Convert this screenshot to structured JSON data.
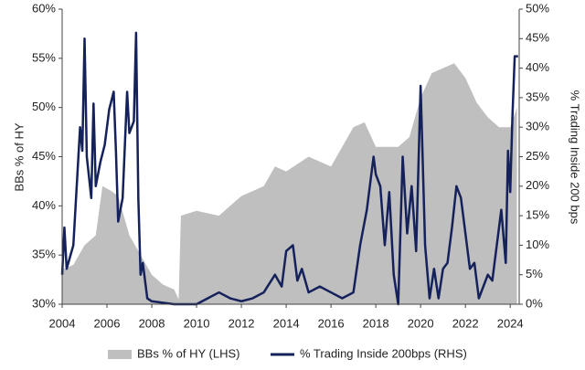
{
  "chart_data": {
    "type": "area_line",
    "ylabel": "BBs % of HY",
    "y2label": "% Trading Inside 200 bps",
    "xlim": [
      2004,
      2024.4
    ],
    "xticks": [
      2004,
      2006,
      2008,
      2010,
      2012,
      2014,
      2016,
      2018,
      2020,
      2022,
      2024
    ],
    "ylim": [
      30,
      60
    ],
    "yticks": [
      {
        "value": 30,
        "label": "30%"
      },
      {
        "value": 35,
        "label": "35%"
      },
      {
        "value": 40,
        "label": "40%"
      },
      {
        "value": 45,
        "label": "45%"
      },
      {
        "value": 50,
        "label": "50%"
      },
      {
        "value": 55,
        "label": "55%"
      },
      {
        "value": 60,
        "label": "60%"
      }
    ],
    "y2lim": [
      0,
      50
    ],
    "y2ticks": [
      {
        "value": 0,
        "label": "0%"
      },
      {
        "value": 5,
        "label": "5%"
      },
      {
        "value": 10,
        "label": "10%"
      },
      {
        "value": 15,
        "label": "15%"
      },
      {
        "value": 20,
        "label": "20%"
      },
      {
        "value": 25,
        "label": "25%"
      },
      {
        "value": 30,
        "label": "30%"
      },
      {
        "value": 35,
        "label": "35%"
      },
      {
        "value": 40,
        "label": "40%"
      },
      {
        "value": 45,
        "label": "45%"
      },
      {
        "value": 50,
        "label": "50%"
      }
    ],
    "series": [
      {
        "name": "BBs % of HY (LHS)",
        "color": "#bfbfbf",
        "kind": "area",
        "x": [
          2004,
          2004.5,
          2005,
          2005.5,
          2005.8,
          2006.2,
          2006.5,
          2007,
          2007.5,
          2008,
          2008.5,
          2009,
          2009.2,
          2009.3,
          2010,
          2011,
          2012,
          2013,
          2013.5,
          2014,
          2015,
          2016,
          2016.5,
          2017,
          2017.5,
          2018,
          2019,
          2019.5,
          2020,
          2020.5,
          2021,
          2021.5,
          2022,
          2022.5,
          2023,
          2023.5,
          2024,
          2024.3
        ],
        "values": [
          33.5,
          34,
          36,
          37,
          42,
          41.5,
          41,
          37,
          35,
          33,
          32,
          31.5,
          30.5,
          39,
          39.5,
          39,
          41,
          42,
          44,
          43.5,
          45,
          44,
          46,
          48,
          48.5,
          46,
          46,
          47,
          51,
          53.5,
          54,
          54.5,
          53,
          50.5,
          49,
          48,
          48,
          50
        ]
      },
      {
        "name": "% Trading Inside 200bps (RHS)",
        "color": "#14215a",
        "kind": "line",
        "axis": "y2",
        "x": [
          2004,
          2004.1,
          2004.2,
          2004.5,
          2004.8,
          2004.9,
          2005,
          2005.1,
          2005.3,
          2005.4,
          2005.5,
          2005.7,
          2005.9,
          2006.1,
          2006.3,
          2006.4,
          2006.5,
          2006.7,
          2006.9,
          2007,
          2007.2,
          2007.3,
          2007.4,
          2007.5,
          2007.6,
          2007.8,
          2008,
          2009,
          2010,
          2010.5,
          2011,
          2011.5,
          2012,
          2012.5,
          2013,
          2013.5,
          2013.8,
          2014,
          2014.3,
          2014.5,
          2014.7,
          2015,
          2015.5,
          2016,
          2016.5,
          2017,
          2017.3,
          2017.6,
          2017.9,
          2018,
          2018.2,
          2018.4,
          2018.6,
          2018.8,
          2019,
          2019.2,
          2019.4,
          2019.6,
          2019.8,
          2020,
          2020.2,
          2020.4,
          2020.6,
          2020.8,
          2021,
          2021.2,
          2021.4,
          2021.6,
          2021.8,
          2022,
          2022.2,
          2022.4,
          2022.6,
          2022.8,
          2023,
          2023.2,
          2023.4,
          2023.6,
          2023.8,
          2023.9,
          2024,
          2024.1,
          2024.2,
          2024.35
        ],
        "values": [
          5,
          13,
          6,
          10,
          30,
          26,
          45,
          25,
          18,
          34,
          20,
          24,
          27,
          33,
          36,
          26,
          14,
          18,
          36,
          29,
          31,
          46,
          18,
          5,
          7,
          1,
          0.5,
          0,
          0,
          1,
          2,
          1,
          0.5,
          1,
          2,
          5,
          3,
          9,
          10,
          4,
          6,
          2,
          3,
          2,
          1,
          2,
          10,
          16,
          25,
          22,
          20,
          10,
          19,
          5,
          0,
          25,
          12,
          20,
          9,
          37,
          10,
          1,
          6,
          1,
          6,
          7,
          13,
          20,
          18,
          12,
          6,
          7,
          1,
          3,
          5,
          4,
          10,
          16,
          7,
          26,
          19,
          32,
          42,
          42
        ]
      }
    ]
  }
}
